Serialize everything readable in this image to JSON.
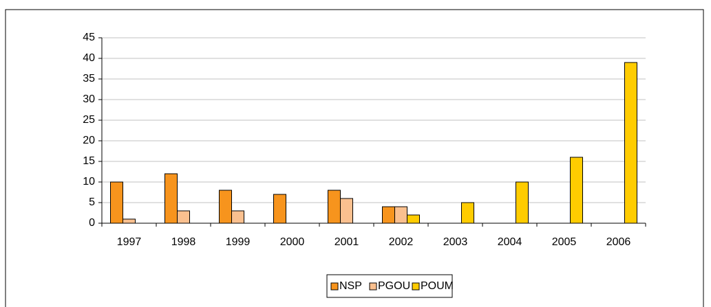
{
  "chart_data": {
    "type": "bar",
    "categories": [
      "1997",
      "1998",
      "1999",
      "2000",
      "2001",
      "2002",
      "2003",
      "2004",
      "2005",
      "2006"
    ],
    "series": [
      {
        "name": "NSP",
        "color": "#f7941d",
        "values": [
          10,
          12,
          8,
          7,
          8,
          4,
          0,
          0,
          0,
          0
        ]
      },
      {
        "name": "PGOU",
        "color": "#fac08f",
        "values": [
          1,
          3,
          3,
          0,
          6,
          4,
          0,
          0,
          0,
          0
        ]
      },
      {
        "name": "POUM",
        "color": "#ffcc00",
        "values": [
          0,
          0,
          0,
          0,
          0,
          2,
          5,
          10,
          16,
          39
        ]
      }
    ],
    "ylim": [
      0,
      45
    ],
    "yticks": [
      0,
      5,
      10,
      15,
      20,
      25,
      30,
      35,
      40,
      45
    ],
    "grid": true,
    "legend": "bottom"
  }
}
